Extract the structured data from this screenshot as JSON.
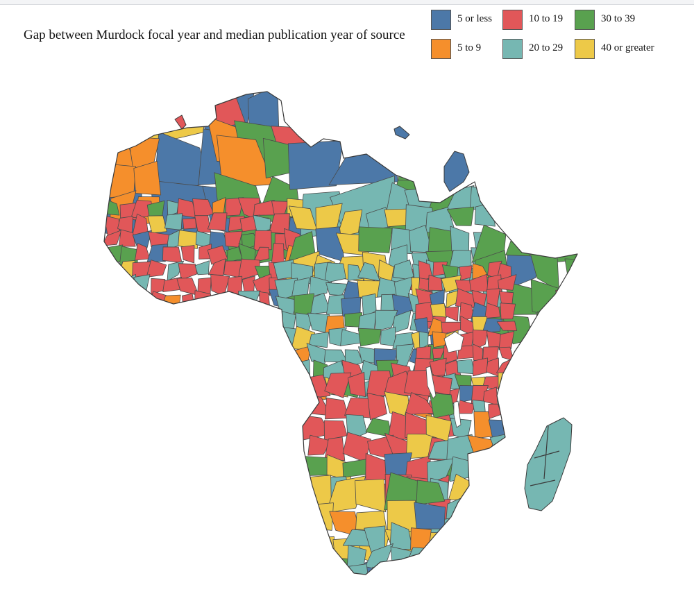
{
  "title": "Gap between Murdock focal year and median publication year of source",
  "legend": {
    "items": [
      {
        "label": "5 or less",
        "color": "#4c78a8"
      },
      {
        "label": "5 to 9",
        "color": "#f58f2c"
      },
      {
        "label": "10 to 19",
        "color": "#e15759"
      },
      {
        "label": "20 to 29",
        "color": "#76b7b2"
      },
      {
        "label": "30 to 39",
        "color": "#59a14f"
      },
      {
        "label": "40 or greater",
        "color": "#edc948"
      }
    ]
  }
}
